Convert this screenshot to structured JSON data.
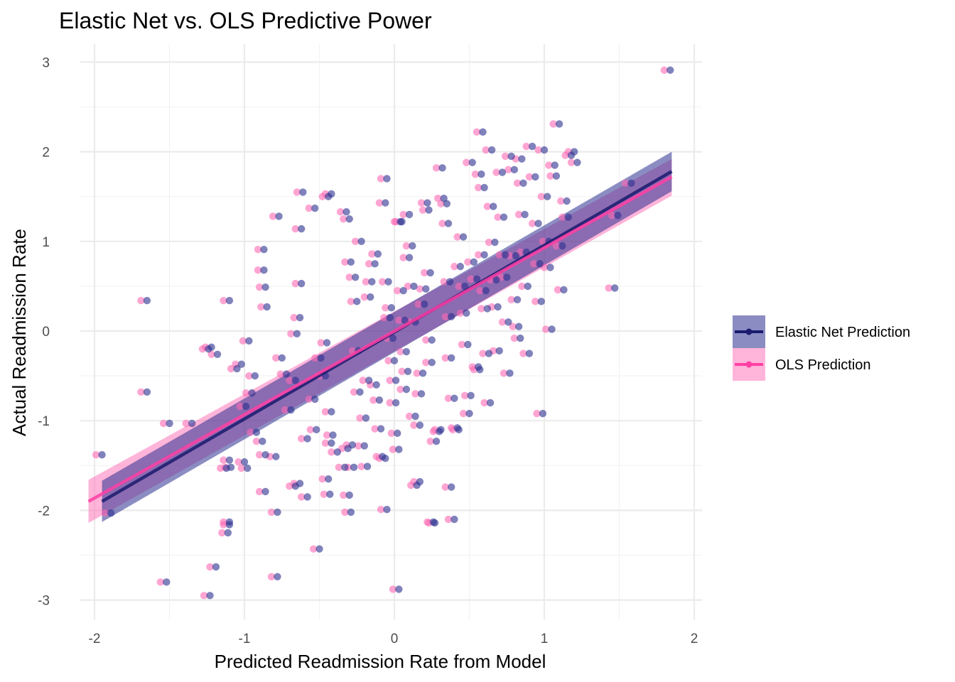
{
  "chart_data": {
    "type": "scatter",
    "title": "Elastic Net vs. OLS Predictive Power",
    "xlabel": "Predicted Readmission Rate from Model",
    "ylabel": "Actual Readmission Rate",
    "xlim": [
      -2.15,
      1.95
    ],
    "ylim": [
      -3.2,
      3.15
    ],
    "xticks": [
      -2,
      -1,
      0,
      1,
      2
    ],
    "yticks": [
      -3,
      -2,
      -1,
      0,
      1,
      2,
      3
    ],
    "grid": true,
    "legend_position": "right",
    "series": [
      {
        "name": "Elastic Net Prediction",
        "color": "#1a1a6e",
        "fill": "#2b2f8f",
        "fit": {
          "x0": -1.95,
          "y0": -1.9,
          "x1": 1.85,
          "y1": 1.78
        },
        "band": {
          "lo0": -2.13,
          "hi0": -1.67,
          "lo1": 1.56,
          "hi1": 2.0
        }
      },
      {
        "name": "OLS Prediction",
        "color": "#ff3fa4",
        "fill": "#ff69b4",
        "fit": {
          "x0": -2.04,
          "y0": -1.9,
          "x1": 1.85,
          "y1": 1.72
        },
        "band": {
          "lo0": -2.14,
          "hi0": -1.66,
          "lo1": 1.51,
          "hi1": 1.92
        }
      }
    ],
    "points": [
      [
        -1.95,
        -1.38
      ],
      [
        -1.89,
        -2.03
      ],
      [
        -1.65,
        0.34
      ],
      [
        -1.65,
        -0.68
      ],
      [
        -1.5,
        -1.03
      ],
      [
        -1.52,
        -2.8
      ],
      [
        -1.35,
        -1.03
      ],
      [
        -1.23,
        -2.95
      ],
      [
        -1.22,
        -0.18
      ],
      [
        -1.18,
        -0.26
      ],
      [
        -1.24,
        -0.2
      ],
      [
        -1.19,
        -2.63
      ],
      [
        -1.1,
        -2.13
      ],
      [
        -1.1,
        -2.16
      ],
      [
        -1.11,
        -2.25
      ],
      [
        -1.12,
        -1.53
      ],
      [
        -1.1,
        -1.44
      ],
      [
        -1.09,
        -1.52
      ],
      [
        -1.1,
        0.34
      ],
      [
        -1.05,
        -0.42
      ],
      [
        -1.02,
        -0.37
      ],
      [
        -1.0,
        -1.46
      ],
      [
        -0.98,
        -1.53
      ],
      [
        -0.99,
        -0.84
      ],
      [
        -0.97,
        -0.11
      ],
      [
        -0.95,
        -0.69
      ],
      [
        -0.93,
        -0.5
      ],
      [
        -0.92,
        -1.13
      ],
      [
        -0.88,
        -1.23
      ],
      [
        -0.86,
        -1.38
      ],
      [
        -0.86,
        -1.79
      ],
      [
        -0.78,
        -2.02
      ],
      [
        -0.79,
        -1.4
      ],
      [
        -0.87,
        0.91
      ],
      [
        -0.87,
        0.68
      ],
      [
        -0.85,
        0.27
      ],
      [
        -0.86,
        0.49
      ],
      [
        -0.78,
        -2.74
      ],
      [
        -0.75,
        -0.3
      ],
      [
        -0.77,
        1.28
      ],
      [
        -0.72,
        -0.48
      ],
      [
        -0.69,
        -0.88
      ],
      [
        -0.66,
        -0.55
      ],
      [
        -0.65,
        -0.03
      ],
      [
        -0.63,
        0.15
      ],
      [
        -0.62,
        1.14
      ],
      [
        -0.61,
        1.55
      ],
      [
        -0.62,
        0.53
      ],
      [
        -0.66,
        -1.73
      ],
      [
        -0.63,
        -1.7
      ],
      [
        -0.58,
        -1.85
      ],
      [
        -0.58,
        -1.2
      ],
      [
        -0.52,
        -1.1
      ],
      [
        -0.5,
        -2.43
      ],
      [
        -0.53,
        -0.76
      ],
      [
        -0.53,
        1.37
      ],
      [
        -0.49,
        -0.3
      ],
      [
        -0.45,
        -0.13
      ],
      [
        -0.46,
        -0.5
      ],
      [
        -0.44,
        1.5
      ],
      [
        -0.42,
        1.53
      ],
      [
        -0.42,
        -0.9
      ],
      [
        -0.43,
        -1.82
      ],
      [
        -0.44,
        -1.65
      ],
      [
        -0.42,
        -1.25
      ],
      [
        -0.41,
        -1.16
      ],
      [
        -0.38,
        -1.35
      ],
      [
        -0.33,
        -1.52
      ],
      [
        -0.31,
        -1.31
      ],
      [
        -0.29,
        -2.02
      ],
      [
        -0.3,
        -1.83
      ],
      [
        -0.27,
        -1.52
      ],
      [
        -0.28,
        -1.27
      ],
      [
        -0.32,
        1.33
      ],
      [
        -0.3,
        1.25
      ],
      [
        -0.29,
        0.77
      ],
      [
        -0.26,
        0.6
      ],
      [
        -0.25,
        0.33
      ],
      [
        -0.24,
        -0.22
      ],
      [
        -0.23,
        -0.68
      ],
      [
        -0.22,
        1.0
      ],
      [
        -0.2,
        -1.28
      ],
      [
        -0.18,
        -1.51
      ],
      [
        -0.19,
        -0.97
      ],
      [
        -0.17,
        -0.55
      ],
      [
        -0.16,
        0.38
      ],
      [
        -0.15,
        0.55
      ],
      [
        -0.13,
        0.75
      ],
      [
        -0.11,
        0.86
      ],
      [
        -0.12,
        -0.6
      ],
      [
        -0.1,
        -0.77
      ],
      [
        -0.09,
        -1.09
      ],
      [
        -0.08,
        -1.4
      ],
      [
        -0.06,
        -1.42
      ],
      [
        -0.05,
        -1.99
      ],
      [
        -0.06,
        1.43
      ],
      [
        -0.05,
        1.7
      ],
      [
        -0.04,
        0.55
      ],
      [
        -0.03,
        0.15
      ],
      [
        -0.02,
        0.26
      ],
      [
        -0.01,
        -0.08
      ],
      [
        0.0,
        -0.33
      ],
      [
        0.01,
        -0.55
      ],
      [
        0.01,
        -0.8
      ],
      [
        0.02,
        -1.14
      ],
      [
        0.03,
        -1.32
      ],
      [
        0.03,
        -2.88
      ],
      [
        0.04,
        1.22
      ],
      [
        0.05,
        1.22
      ],
      [
        0.06,
        0.45
      ],
      [
        0.07,
        0.12
      ],
      [
        0.08,
        -0.23
      ],
      [
        0.08,
        -0.65
      ],
      [
        0.09,
        -0.45
      ],
      [
        0.1,
        0.82
      ],
      [
        0.1,
        1.3
      ],
      [
        0.12,
        0.95
      ],
      [
        0.13,
        0.5
      ],
      [
        0.14,
        0.1
      ],
      [
        0.14,
        -0.95
      ],
      [
        0.15,
        -1.72
      ],
      [
        0.17,
        -1.68
      ],
      [
        0.17,
        -1.05
      ],
      [
        0.18,
        -0.7
      ],
      [
        0.19,
        -0.47
      ],
      [
        0.2,
        0.3
      ],
      [
        0.21,
        0.47
      ],
      [
        0.22,
        1.43
      ],
      [
        0.23,
        1.35
      ],
      [
        0.24,
        0.65
      ],
      [
        0.25,
        -0.1
      ],
      [
        0.25,
        -0.35
      ],
      [
        0.26,
        -2.13
      ],
      [
        0.27,
        -2.14
      ],
      [
        0.28,
        -1.23
      ],
      [
        0.3,
        -1.12
      ],
      [
        0.31,
        -1.1
      ],
      [
        0.32,
        1.82
      ],
      [
        0.33,
        1.48
      ],
      [
        0.35,
        1.42
      ],
      [
        0.36,
        1.2
      ],
      [
        0.37,
        0.55
      ],
      [
        0.38,
        0.16
      ],
      [
        0.38,
        -0.3
      ],
      [
        0.4,
        -0.75
      ],
      [
        0.42,
        -1.08
      ],
      [
        0.43,
        -1.1
      ],
      [
        0.4,
        -2.1
      ],
      [
        0.38,
        -1.74
      ],
      [
        0.44,
        0.72
      ],
      [
        0.46,
        1.05
      ],
      [
        0.47,
        0.5
      ],
      [
        0.48,
        0.2
      ],
      [
        0.49,
        -0.15
      ],
      [
        0.5,
        -0.92
      ],
      [
        0.51,
        -0.72
      ],
      [
        0.52,
        1.88
      ],
      [
        0.53,
        0.77
      ],
      [
        0.55,
        0.58
      ],
      [
        0.56,
        -0.4
      ],
      [
        0.57,
        -0.43
      ],
      [
        0.58,
        1.75
      ],
      [
        0.59,
        2.22
      ],
      [
        0.6,
        1.6
      ],
      [
        0.6,
        0.85
      ],
      [
        0.61,
        0.45
      ],
      [
        0.62,
        0.25
      ],
      [
        0.63,
        -0.25
      ],
      [
        0.64,
        -0.8
      ],
      [
        0.65,
        2.02
      ],
      [
        0.66,
        1.39
      ],
      [
        0.67,
        0.99
      ],
      [
        0.68,
        0.57
      ],
      [
        0.69,
        0.27
      ],
      [
        0.7,
        -0.22
      ],
      [
        0.72,
        1.77
      ],
      [
        0.73,
        1.27
      ],
      [
        0.74,
        0.85
      ],
      [
        0.75,
        0.6
      ],
      [
        0.76,
        0.1
      ],
      [
        0.77,
        -0.47
      ],
      [
        0.78,
        1.95
      ],
      [
        0.8,
        1.8
      ],
      [
        0.81,
        0.84
      ],
      [
        0.82,
        0.35
      ],
      [
        0.83,
        0.05
      ],
      [
        0.84,
        -0.08
      ],
      [
        0.85,
        1.92
      ],
      [
        0.86,
        1.65
      ],
      [
        0.87,
        1.3
      ],
      [
        0.88,
        0.88
      ],
      [
        0.89,
        0.5
      ],
      [
        0.9,
        -0.25
      ],
      [
        0.92,
        2.06
      ],
      [
        0.94,
        1.72
      ],
      [
        0.96,
        1.2
      ],
      [
        0.97,
        0.75
      ],
      [
        0.98,
        0.33
      ],
      [
        0.99,
        -0.92
      ],
      [
        1.0,
        2.02
      ],
      [
        1.02,
        1.5
      ],
      [
        1.03,
        1.0
      ],
      [
        1.04,
        0.71
      ],
      [
        1.05,
        0.02
      ],
      [
        1.07,
        1.85
      ],
      [
        1.08,
        1.73
      ],
      [
        1.1,
        2.31
      ],
      [
        1.12,
        0.95
      ],
      [
        1.13,
        0.46
      ],
      [
        1.15,
        1.45
      ],
      [
        1.16,
        1.27
      ],
      [
        1.18,
        1.96
      ],
      [
        1.2,
        2.0
      ],
      [
        1.22,
        1.88
      ],
      [
        1.47,
        0.48
      ],
      [
        1.49,
        1.29
      ],
      [
        1.58,
        1.65
      ],
      [
        1.84,
        2.91
      ]
    ]
  }
}
